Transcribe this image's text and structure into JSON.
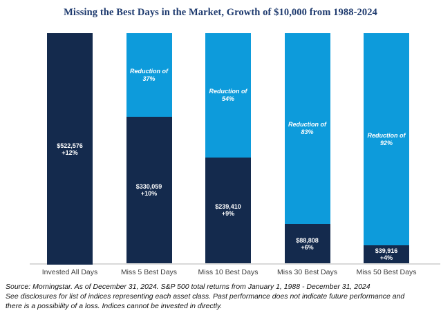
{
  "title": "Missing the Best Days in the Market, Growth of $10,000 from 1988-2024",
  "colors": {
    "bar_navy": "#142A4D",
    "bar_light_blue": "#0D9BDB",
    "title_navy": "#1E3A6E",
    "axis_line": "#D9D9D9"
  },
  "chart_data": {
    "type": "bar",
    "subtype": "stacked-shortfall",
    "title": "Missing the Best Days in the Market, Growth of $10,000 from 1988-2024",
    "xlabel": "",
    "ylabel": "",
    "ylim": [
      0,
      522576
    ],
    "grid": false,
    "legend": "none",
    "categories": [
      "Invested All Days",
      "Miss 5 Best Days",
      "Miss 10 Best Days",
      "Miss 30 Best Days",
      "Miss 50 Best Days"
    ],
    "values": [
      522576,
      330059,
      239410,
      88808,
      39916
    ],
    "bars": [
      {
        "category": "Invested All Days",
        "value": 522576,
        "value_label": "$522,576",
        "return_label": "+12%",
        "reduction_pct": null,
        "reduction_line1": null,
        "reduction_line2": null
      },
      {
        "category": "Miss 5 Best Days",
        "value": 330059,
        "value_label": "$330,059",
        "return_label": "+10%",
        "reduction_pct": 37,
        "reduction_line1": "Reduction of",
        "reduction_line2": "37%"
      },
      {
        "category": "Miss 10 Best Days",
        "value": 239410,
        "value_label": "$239,410",
        "return_label": "+9%",
        "reduction_pct": 54,
        "reduction_line1": "Reduction of",
        "reduction_line2": "54%"
      },
      {
        "category": "Miss 30 Best Days",
        "value": 88808,
        "value_label": "$88,808",
        "return_label": "+6%",
        "reduction_pct": 83,
        "reduction_line1": "Reduction of",
        "reduction_line2": "83%"
      },
      {
        "category": "Miss 50 Best Days",
        "value": 39916,
        "value_label": "$39,916",
        "return_label": "+4%",
        "reduction_pct": 92,
        "reduction_line1": "Reduction of",
        "reduction_line2": "92%"
      }
    ]
  },
  "source": {
    "lines": [
      "Source: Morningstar. As of December 31, 2024. S&P 500 total returns from January 1, 1988 - December 31, 2024",
      "See disclosures for list of indices representing each asset class. Past performance does not indicate future performance and",
      "there is a possibility of a loss. Indices cannot be invested in directly."
    ]
  }
}
